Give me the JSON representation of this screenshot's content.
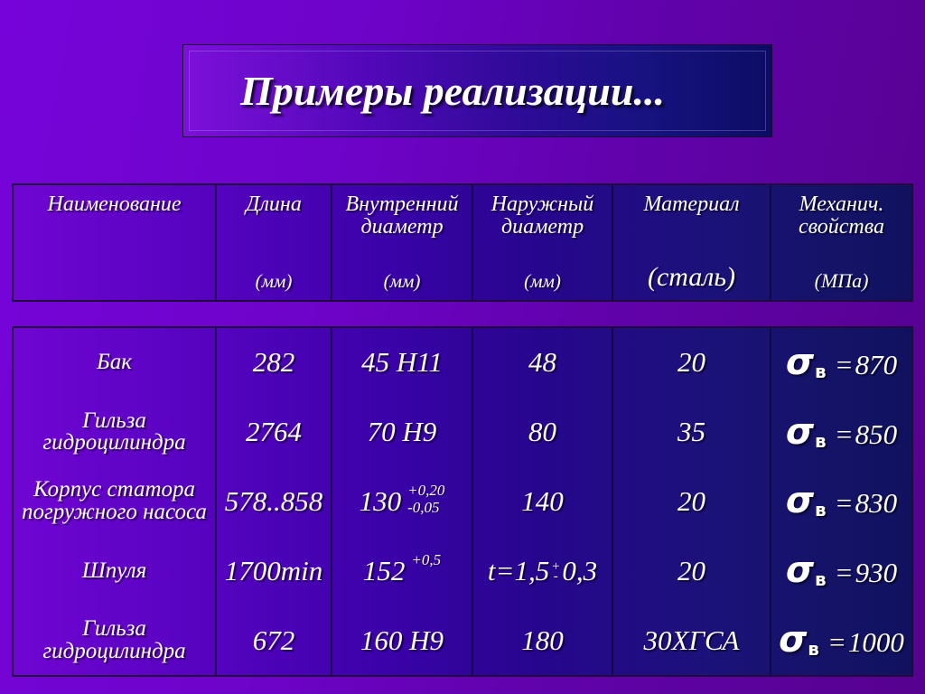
{
  "slide": {
    "title": "Примеры реализации..."
  },
  "colors": {
    "background_left": "#7604da",
    "background_right": "#56018f",
    "table_gradient_left": "#7005d2",
    "table_gradient_right": "#111160",
    "title_box_left": "#7d10da",
    "title_box_right": "#0c0c64",
    "border": "#200a3e",
    "text": "#ffffff"
  },
  "table": {
    "header": {
      "columns": [
        {
          "label": "Наименование",
          "unit": ""
        },
        {
          "label": "Длина",
          "unit": "(мм)"
        },
        {
          "label": "Внутренний диаметр",
          "unit": "(мм)"
        },
        {
          "label": "Наружный диаметр",
          "unit": "(мм)"
        },
        {
          "label": "Материал",
          "unit": "(сталь)"
        },
        {
          "label": "Механич. свойства",
          "unit": "(МПа)"
        }
      ]
    },
    "sigma": {
      "symbol": "σ",
      "subscript": "в",
      "equals": "="
    },
    "rows": [
      {
        "name": "Бак",
        "length": "282",
        "inner": "45 H11",
        "outer": "48",
        "material": "20",
        "sigma_value": "870"
      },
      {
        "name": "Гильза гидроцилиндра",
        "length": "2764",
        "inner": "70 H9",
        "outer": "80",
        "material": "35",
        "sigma_value": "850"
      },
      {
        "name": "Корпус статора погружного насоса",
        "length": "578..858",
        "inner": "130",
        "inner_tol_top": "+0,20",
        "inner_tol_bottom": "-0,05",
        "outer": "140",
        "material": "20",
        "sigma_value": "830"
      },
      {
        "name": "Шпуля",
        "length": "1700min",
        "inner": "152",
        "inner_tol_top": "+0,5",
        "outer": "t=1,5",
        "outer_tol_top": "+",
        "outer_tol_bottom": "-",
        "outer_tail": "0,3",
        "material": "20",
        "sigma_value": "930"
      },
      {
        "name": "Гильза гидроцилиндра",
        "length": "672",
        "inner": "160 H9",
        "outer": "180",
        "material": "30ХГСА",
        "sigma_value": "1000"
      }
    ]
  }
}
